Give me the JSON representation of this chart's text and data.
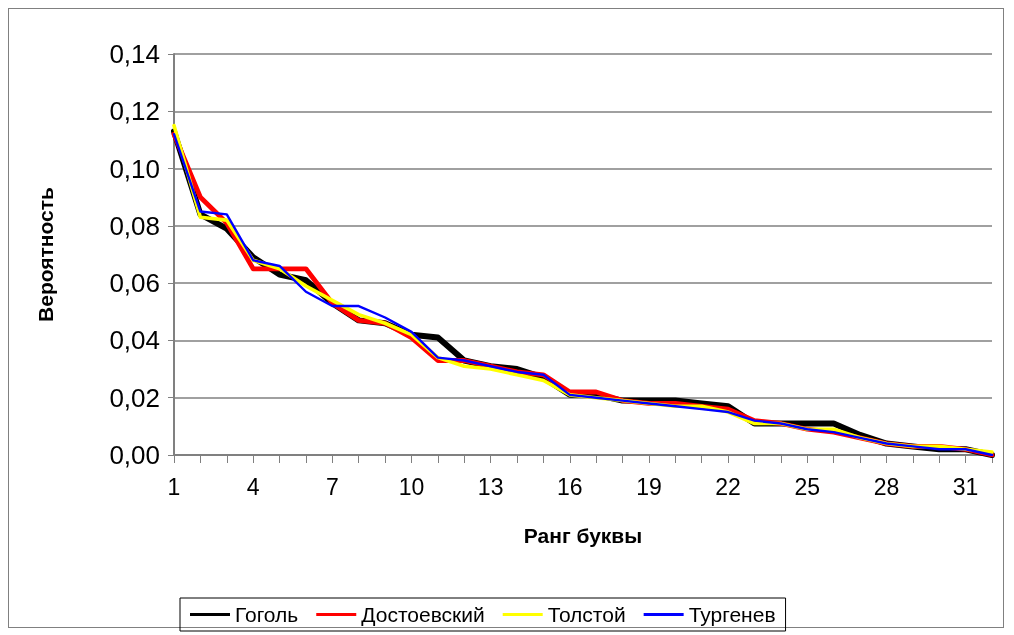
{
  "chart_data": {
    "type": "line",
    "xlabel": "Ранг буквы",
    "ylabel": "Вероятность",
    "categories": [
      "1",
      null,
      null,
      "4",
      null,
      null,
      "7",
      null,
      null,
      "10",
      null,
      null,
      "13",
      null,
      null,
      "16",
      null,
      null,
      "19",
      null,
      null,
      "22",
      null,
      null,
      "25",
      null,
      null,
      "28",
      null,
      null,
      "31",
      null
    ],
    "series": [
      {
        "name": "Гоголь",
        "color": "#000000",
        "values": [
          0.113,
          0.084,
          0.079,
          0.069,
          0.063,
          0.061,
          0.053,
          0.047,
          0.046,
          0.042,
          0.041,
          0.033,
          0.031,
          0.03,
          0.027,
          0.021,
          0.021,
          0.019,
          0.019,
          0.019,
          0.018,
          0.017,
          0.011,
          0.011,
          0.011,
          0.011,
          0.007,
          0.004,
          0.003,
          0.002,
          0.002,
          0.0
        ]
      },
      {
        "name": "Достоевский",
        "color": "#ff0000",
        "values": [
          0.112,
          0.09,
          0.081,
          0.065,
          0.065,
          0.065,
          0.053,
          0.047,
          0.046,
          0.041,
          0.033,
          0.033,
          0.031,
          0.029,
          0.028,
          0.022,
          0.022,
          0.019,
          0.018,
          0.018,
          0.017,
          0.016,
          0.012,
          0.011,
          0.009,
          0.008,
          0.006,
          0.004,
          0.003,
          0.003,
          0.002,
          0.0
        ]
      },
      {
        "name": "Толстой",
        "color": "#ffff00",
        "values": [
          0.115,
          0.083,
          0.082,
          0.068,
          0.065,
          0.059,
          0.054,
          0.049,
          0.046,
          0.042,
          0.034,
          0.031,
          0.03,
          0.028,
          0.026,
          0.021,
          0.02,
          0.019,
          0.018,
          0.017,
          0.017,
          0.015,
          0.011,
          0.011,
          0.009,
          0.009,
          0.006,
          0.004,
          0.003,
          0.003,
          0.002,
          0.001
        ]
      },
      {
        "name": "Тургенев",
        "color": "#0000ff",
        "values": [
          0.112,
          0.085,
          0.084,
          0.068,
          0.066,
          0.057,
          0.052,
          0.052,
          0.048,
          0.043,
          0.034,
          0.033,
          0.031,
          0.029,
          0.028,
          0.021,
          0.02,
          0.019,
          0.018,
          0.017,
          0.016,
          0.015,
          0.012,
          0.011,
          0.009,
          0.008,
          0.006,
          0.004,
          0.003,
          0.002,
          0.002,
          0.0
        ]
      }
    ],
    "ylim": [
      0,
      0.14
    ],
    "yticks": [
      {
        "value": 0,
        "label": "0,00"
      },
      {
        "value": 0.02,
        "label": "0,02"
      },
      {
        "value": 0.04,
        "label": "0,04"
      },
      {
        "value": 0.06,
        "label": "0,06"
      },
      {
        "value": 0.08,
        "label": "0,08"
      },
      {
        "value": 0.1,
        "label": "0,10"
      },
      {
        "value": 0.12,
        "label": "0,12"
      },
      {
        "value": 0.14,
        "label": "0,14"
      }
    ],
    "grid": "y",
    "legend": "bottom",
    "marker": "none",
    "line_style": "solid"
  }
}
